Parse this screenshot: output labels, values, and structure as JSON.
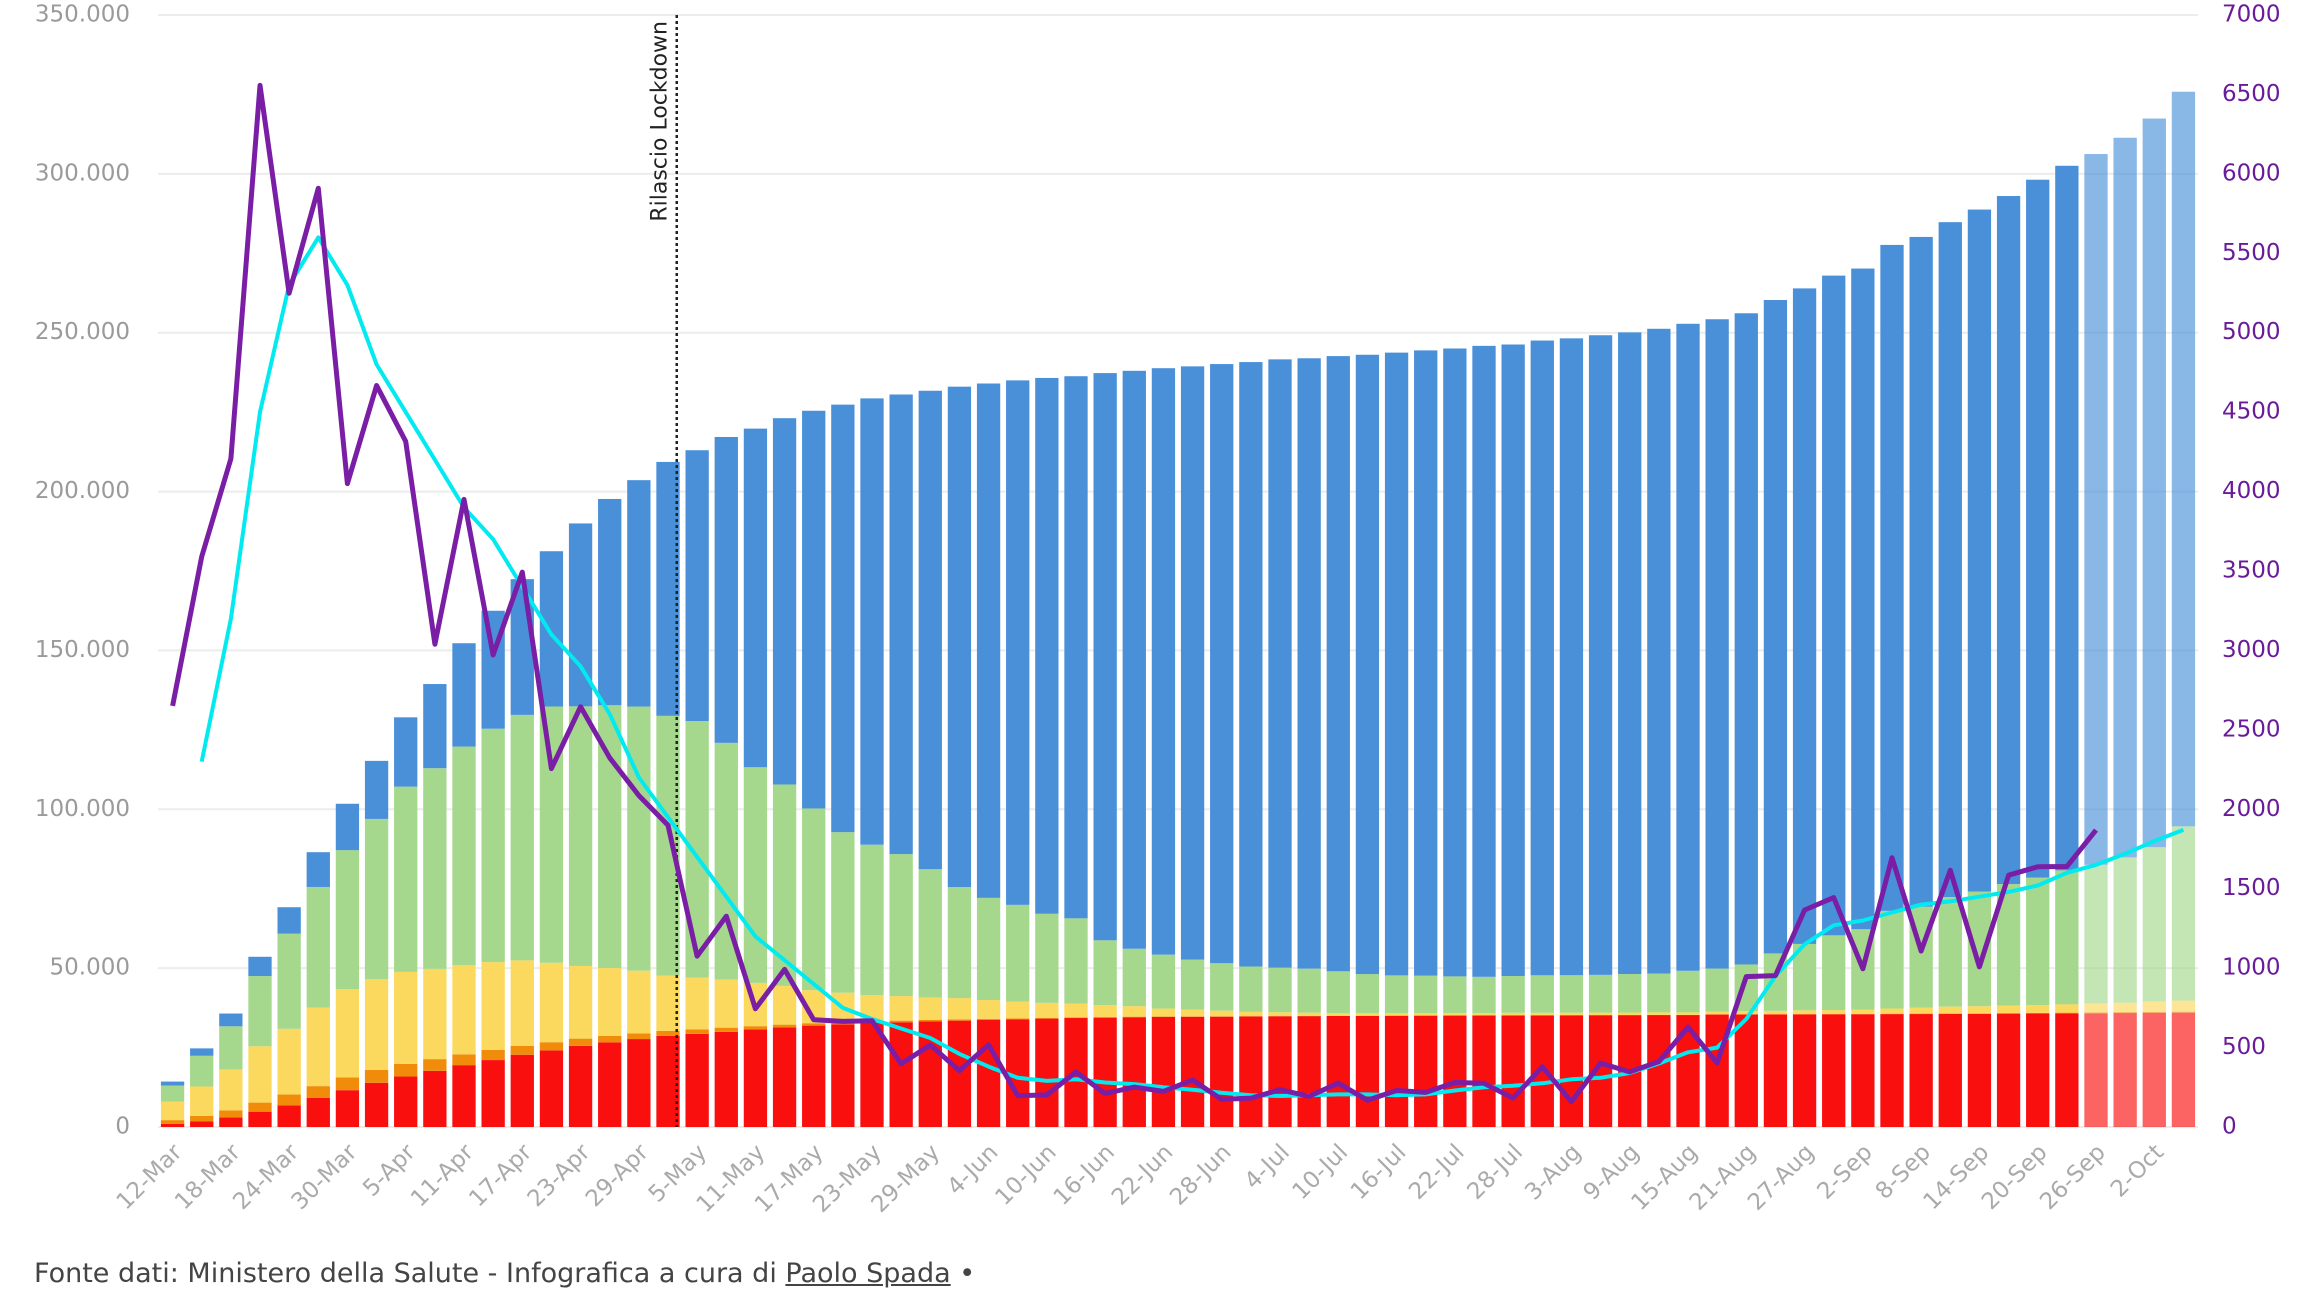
{
  "chart_data": {
    "type": "bar",
    "categories": [
      "12-Mar",
      null,
      "18-Mar",
      null,
      "24-Mar",
      null,
      "30-Mar",
      null,
      "5-Apr",
      null,
      "11-Apr",
      null,
      "17-Apr",
      null,
      "23-Apr",
      null,
      "29-Apr",
      null,
      "5-May",
      null,
      "11-May",
      null,
      "17-May",
      null,
      "23-May",
      null,
      "29-May",
      null,
      "4-Jun",
      null,
      "10-Jun",
      null,
      "16-Jun",
      null,
      "22-Jun",
      null,
      "28-Jun",
      null,
      "4-Jul",
      null,
      "10-Jul",
      null,
      "16-Jul",
      null,
      "22-Jul",
      null,
      "28-Jul",
      null,
      "3-Aug",
      null,
      "9-Aug",
      null,
      "15-Aug",
      null,
      "21-Aug",
      null,
      "27-Aug",
      null,
      "2-Sep",
      null,
      "8-Sep",
      null,
      "14-Sep",
      null,
      "20-Sep",
      null,
      "26-Sep",
      null,
      "2-Oct",
      null
    ],
    "series": [
      {
        "color": "#fa0f0f",
        "values": [
          1016,
          1809,
          2978,
          4825,
          6820,
          9134,
          11591,
          13915,
          15887,
          17669,
          19468,
          21067,
          22745,
          24114,
          25549,
          26644,
          27682,
          28710,
          29315,
          29958,
          30739,
          31368,
          31908,
          32330,
          32735,
          32955,
          33229,
          33475,
          33689,
          33899,
          34114,
          34301,
          34405,
          34561,
          34657,
          34708,
          34738,
          34788,
          34854,
          34899,
          34938,
          34967,
          35017,
          35045,
          35082,
          35102,
          35123,
          35141,
          35166,
          35187,
          35205,
          35231,
          35234,
          35400,
          35418,
          35437,
          35463,
          35477,
          35491,
          35534,
          35553,
          35597,
          35610,
          35668,
          35707,
          35758,
          35801,
          35875,
          35941,
          35986
        ]
      },
      {
        "color": "#f08c0a",
        "values": [
          1153,
          1672,
          2257,
          2857,
          3396,
          3732,
          3981,
          4053,
          3977,
          3693,
          3381,
          3186,
          2812,
          2573,
          2267,
          2009,
          1795,
          1539,
          1427,
          1311,
          999,
          855,
          762,
          676,
          572,
          521,
          450,
          424,
          353,
          287,
          249,
          220,
          207,
          168,
          148,
          115,
          103,
          87,
          72,
          71,
          65,
          54,
          54,
          49,
          45,
          41,
          40,
          41,
          41,
          42,
          49,
          55,
          55,
          58,
          68,
          69,
          74,
          86,
          109,
          133,
          143,
          174,
          182,
          201,
          220,
          239,
          244,
          271,
          303,
          323
        ]
      },
      {
        "color": "#fbd85e",
        "values": [
          5838,
          9268,
          12894,
          17708,
          20692,
          24753,
          27795,
          28540,
          28949,
          28399,
          28144,
          27643,
          26893,
          25007,
          22871,
          21372,
          19723,
          17357,
          16270,
          15174,
          13618,
          12172,
          10400,
          9269,
          8185,
          7729,
          7094,
          6680,
          5916,
          5301,
          4729,
          4321,
          3747,
          3301,
          2474,
          2122,
          1777,
          1371,
          1181,
          1015,
          871,
          837,
          771,
          767,
          749,
          749,
          779,
          764,
          764,
          785,
          766,
          803,
          794,
          843,
          949,
          1045,
          1178,
          1232,
          1380,
          1621,
          1836,
          2122,
          2222,
          2380,
          2437,
          2604,
          2846,
          2977,
          3287,
          3487
        ]
      },
      {
        "color": "#a5d88c",
        "values": [
          5036,
          9663,
          13559,
          22116,
          29942,
          37929,
          43752,
          50456,
          58320,
          63170,
          68744,
          73462,
          77257,
          80657,
          81710,
          82722,
          83139,
          81808,
          80770,
          74466,
          67871,
          63413,
          57189,
          50529,
          47356,
          44692,
          40355,
          34933,
          32160,
          30433,
          28025,
          26833,
          20405,
          18074,
          16969,
          15740,
          14934,
          14266,
          14037,
          13863,
          13125,
          12275,
          11878,
          11767,
          11528,
          11379,
          11588,
          11795,
          11798,
          11867,
          12136,
          12225,
          13086,
          13564,
          14723,
          18085,
          20905,
          23524,
          25265,
          30736,
          31820,
          34471,
          36102,
          38210,
          40122,
          42174,
          43651,
          45735,
          48551,
          54838
        ]
      },
      {
        "color": "#4a90d9",
        "values": [
          1258,
          2335,
          4025,
          6072,
          8326,
          10950,
          14620,
          18278,
          21815,
          26491,
          32534,
          37130,
          42727,
          48877,
          57576,
          64928,
          71252,
          79914,
          85231,
          96276,
          106587,
          115288,
          125176,
          134560,
          140479,
          144658,
          150604,
          157507,
          161895,
          165078,
          168646,
          170630,
          178526,
          181907,
          184585,
          186725,
          188584,
          190248,
          191467,
          192108,
          193640,
          194928,
          196016,
          196806,
          197628,
          198593,
          198756,
          199796,
          200460,
          201323,
          201947,
          202923,
          203640,
          204370,
          204960,
          205662,
          206329,
          207653,
          207944,
          209610,
          210801,
          212432,
          214645,
          216566,
          219670,
          221762,
          223693,
          226506,
          229327,
          231217
        ]
      },
      {
        "type": "line",
        "axis": "y2",
        "color": "#00eaf0",
        "values": [
          null,
          2300,
          3200,
          4500,
          5300,
          5600,
          5300,
          4800,
          4500,
          4200,
          3900,
          3700,
          3400,
          3100,
          2900,
          2600,
          2200,
          1950,
          1700,
          1450,
          1200,
          1050,
          900,
          750,
          680,
          620,
          560,
          460,
          380,
          310,
          290,
          300,
          280,
          270,
          250,
          235,
          215,
          200,
          195,
          200,
          205,
          205,
          200,
          205,
          230,
          250,
          260,
          275,
          300,
          310,
          340,
          400,
          470,
          500,
          680,
          950,
          1150,
          1270,
          1300,
          1350,
          1400,
          1420,
          1450,
          1480,
          1520,
          1600,
          1650,
          1720,
          1800,
          1870
        ]
      },
      {
        "type": "line",
        "axis": "y2",
        "color": "#7a1ea6",
        "values": [
          2651,
          3590,
          4207,
          6557,
          5249,
          5909,
          4050,
          4668,
          4316,
          3039,
          3951,
          2972,
          3493,
          2256,
          2646,
          2324,
          2086,
          1900,
          1075,
          1327,
          744,
          992,
          675,
          665,
          669,
          397,
          516,
          355,
          518,
          197,
          202,
          346,
          210,
          251,
          224,
          296,
          174,
          182,
          235,
          193,
          276,
          169,
          230,
          218,
          280,
          275,
          181,
          379,
          159,
          402,
          347,
          412,
          629,
          403,
          947,
          953,
          1366,
          1444,
          996,
          1695,
          1108,
          1616,
          1008,
          1585,
          1638,
          1640,
          1869,
          null,
          null,
          null
        ]
      }
    ],
    "forecast_from": "26-Sep",
    "ylim": [
      0,
      350000
    ],
    "yticks": [
      0,
      {
        "value": 50000,
        "label": "50.000"
      },
      {
        "value": 100000,
        "label": "100.000"
      },
      {
        "value": 150000,
        "label": "150.000"
      },
      {
        "value": 200000,
        "label": "200.000"
      },
      {
        "value": 250000,
        "label": "250.000"
      },
      {
        "value": 300000,
        "label": "300.000"
      },
      {
        "value": 350000,
        "label": "350.000"
      }
    ],
    "y2lim": [
      0,
      7000
    ],
    "y2ticks": [
      0,
      500,
      1000,
      1500,
      2000,
      2500,
      3000,
      3500,
      4000,
      4500,
      5000,
      5500,
      6000,
      6500,
      7000
    ],
    "grid": true,
    "annotation": {
      "text": "Rilascio Lockdown",
      "x": "5-May"
    }
  },
  "footer": {
    "text": "Fonte dati: Ministero della Salute - Infografica a cura di",
    "author": "Paolo Spada",
    "bullet": "•"
  }
}
